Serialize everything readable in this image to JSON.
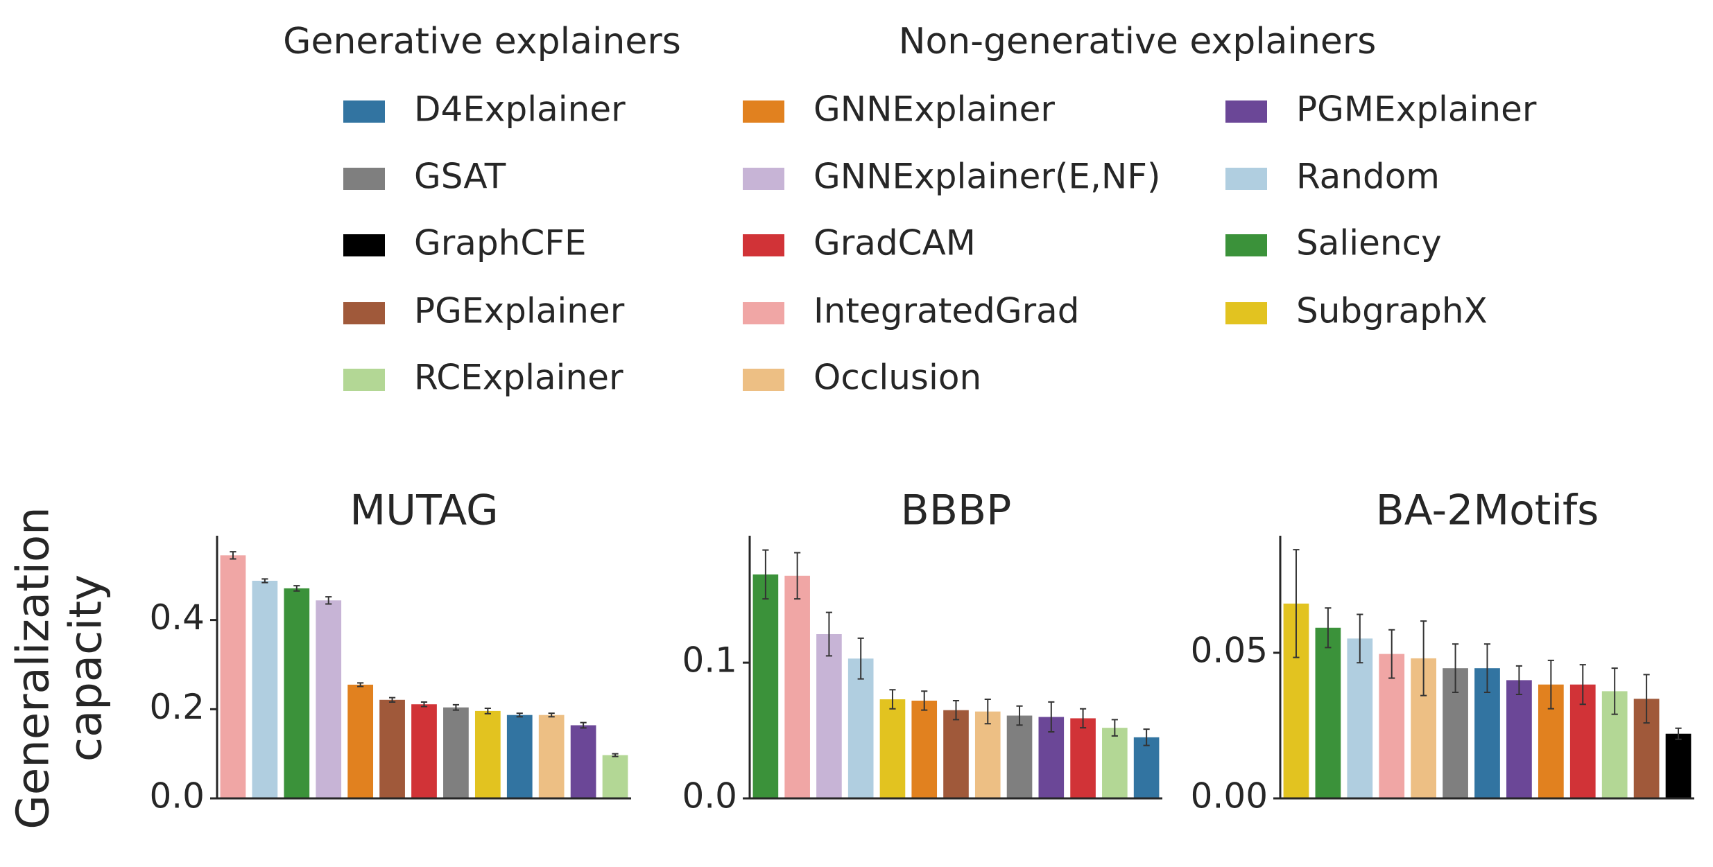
{
  "legend": {
    "groups": [
      {
        "title": "Generative explainers",
        "items": [
          {
            "name": "D4Explainer",
            "color": "#3274a1"
          },
          {
            "name": "GSAT",
            "color": "#7f7f7f"
          },
          {
            "name": "GraphCFE",
            "color": "#000000"
          },
          {
            "name": "PGExplainer",
            "color": "#a0593a"
          },
          {
            "name": "RCExplainer",
            "color": "#b3d795"
          }
        ]
      },
      {
        "title": "Non-generative explainers",
        "items": [
          {
            "name": "GNNExplainer",
            "color": "#e1811f"
          },
          {
            "name": "GNNExplainer(E,NF)",
            "color": "#c7b4d6"
          },
          {
            "name": "GradCAM",
            "color": "#d13337"
          },
          {
            "name": "IntegratedGrad",
            "color": "#f0a6a5"
          },
          {
            "name": "Occlusion",
            "color": "#edbf84"
          },
          {
            "name": "PGMExplainer",
            "color": "#6b4797"
          },
          {
            "name": "Random",
            "color": "#b0cee0"
          },
          {
            "name": "Saliency",
            "color": "#3b923a"
          },
          {
            "name": "SubgraphX",
            "color": "#e2c320"
          }
        ]
      }
    ]
  },
  "ylabel": [
    "Generalization",
    "capacity"
  ],
  "chart_data": [
    {
      "type": "bar",
      "title": "MUTAG",
      "categories": [
        null,
        null,
        null,
        null,
        null,
        null,
        null,
        null,
        null,
        null,
        null,
        null,
        null
      ],
      "values": [
        0.545,
        0.488,
        0.471,
        0.444,
        0.255,
        0.221,
        0.211,
        0.204,
        0.196,
        0.187,
        0.187,
        0.164,
        0.097
      ],
      "errors": [
        0.008,
        0.004,
        0.006,
        0.008,
        0.004,
        0.005,
        0.005,
        0.006,
        0.006,
        0.004,
        0.004,
        0.006,
        0.003
      ],
      "colors": [
        "#f0a6a5",
        "#b0cee0",
        "#3b923a",
        "#c7b4d6",
        "#e1811f",
        "#a0593a",
        "#d13337",
        "#7f7f7f",
        "#e2c320",
        "#3274a1",
        "#edbf84",
        "#6b4797",
        "#b3d795"
      ],
      "ylim": [
        0,
        0.589
      ],
      "yticks": [
        {
          "value": 0,
          "label": "0.0"
        },
        0.2,
        0.4
      ]
    },
    {
      "type": "bar",
      "title": "BBBP",
      "categories": [
        null,
        null,
        null,
        null,
        null,
        null,
        null,
        null,
        null,
        null,
        null,
        null,
        null
      ],
      "values": [
        0.165,
        0.164,
        0.121,
        0.103,
        0.073,
        0.072,
        0.065,
        0.064,
        0.061,
        0.06,
        0.059,
        0.052,
        0.045
      ],
      "errors": [
        0.018,
        0.017,
        0.016,
        0.015,
        0.007,
        0.007,
        0.007,
        0.009,
        0.007,
        0.011,
        0.007,
        0.006,
        0.006
      ],
      "colors": [
        "#3b923a",
        "#f0a6a5",
        "#c7b4d6",
        "#b0cee0",
        "#e2c320",
        "#e1811f",
        "#a0593a",
        "#edbf84",
        "#7f7f7f",
        "#6b4797",
        "#d13337",
        "#b3d795",
        "#3274a1"
      ],
      "ylim": [
        0,
        0.1935
      ],
      "yticks": [
        {
          "value": 0,
          "label": "0.0"
        },
        0.1
      ]
    },
    {
      "type": "bar",
      "title": "BA-2Motifs",
      "categories": [
        null,
        null,
        null,
        null,
        null,
        null,
        null,
        null,
        null,
        null,
        null,
        null,
        null
      ],
      "values": [
        0.0669,
        0.0586,
        0.0549,
        0.0496,
        0.0481,
        0.0447,
        0.0447,
        0.0406,
        0.0391,
        0.0391,
        0.0368,
        0.0342,
        0.0222
      ],
      "errors": [
        0.0185,
        0.0068,
        0.0083,
        0.0083,
        0.0128,
        0.0083,
        0.0083,
        0.0049,
        0.0083,
        0.0068,
        0.0079,
        0.0083,
        0.0019
      ],
      "colors": [
        "#e2c320",
        "#3b923a",
        "#b0cee0",
        "#f0a6a5",
        "#edbf84",
        "#7f7f7f",
        "#3274a1",
        "#6b4797",
        "#e1811f",
        "#d13337",
        "#b3d795",
        "#a0593a",
        "#000000"
      ],
      "ylim": [
        0,
        0.0902
      ],
      "yticks": [
        {
          "value": 0,
          "label": "0.00"
        },
        0.05
      ]
    }
  ]
}
